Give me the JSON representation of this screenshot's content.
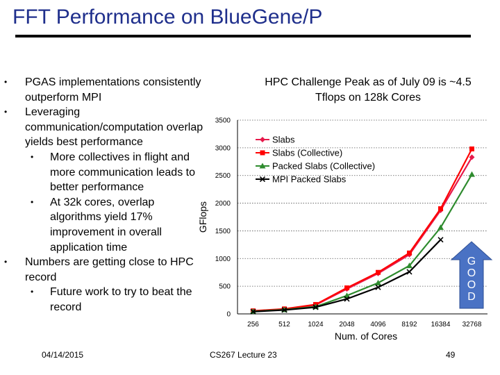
{
  "slide": {
    "title": "FFT Performance on BlueGene/P",
    "date": "04/14/2015",
    "course": "CS267 Lecture 23",
    "page": "49",
    "annotation": "HPC Challenge Peak as of July 09 is ~4.5 Tflops on 128k Cores",
    "badge": [
      "G",
      "O",
      "O",
      "D"
    ],
    "bullets": [
      {
        "text": "PGAS implementations consistently outperform MPI",
        "sub": []
      },
      {
        "text": "Leveraging communication/computation overlap yields best performance",
        "sub": [
          "More collectives in flight and more communication leads to better performance",
          "At 32k cores, overlap algorithms yield 17% improvement in overall application time"
        ]
      },
      {
        "text": "Numbers are getting close to HPC record",
        "sub": [
          "Future work to try to beat the record"
        ]
      }
    ]
  },
  "chart_data": {
    "type": "line",
    "xlabel": "Num. of Cores",
    "ylabel": "GFlops",
    "ylim": [
      0,
      3500
    ],
    "yticks": [
      0,
      500,
      1000,
      1500,
      2000,
      2500,
      3000,
      3500
    ],
    "categories": [
      "256",
      "512",
      "1024",
      "2048",
      "4096",
      "8192",
      "16384",
      "32768"
    ],
    "grid": true,
    "legend": "top-left inside plot",
    "series": [
      {
        "name": "Slabs",
        "color": "#e6194b",
        "marker": "diamond",
        "values": [
          50,
          85,
          160,
          450,
          730,
          1070,
          1870,
          2830
        ]
      },
      {
        "name": "Slabs (Collective)",
        "color": "#ff0000",
        "marker": "square",
        "values": [
          55,
          90,
          170,
          470,
          750,
          1100,
          1900,
          2980
        ]
      },
      {
        "name": "Packed Slabs (Collective)",
        "color": "#2e8b2e",
        "marker": "triangle",
        "values": [
          45,
          75,
          130,
          330,
          560,
          870,
          1560,
          2520
        ]
      },
      {
        "name": "MPI Packed Slabs",
        "color": "#000000",
        "marker": "x",
        "values": [
          40,
          70,
          120,
          270,
          480,
          760,
          1340,
          null
        ]
      }
    ]
  }
}
